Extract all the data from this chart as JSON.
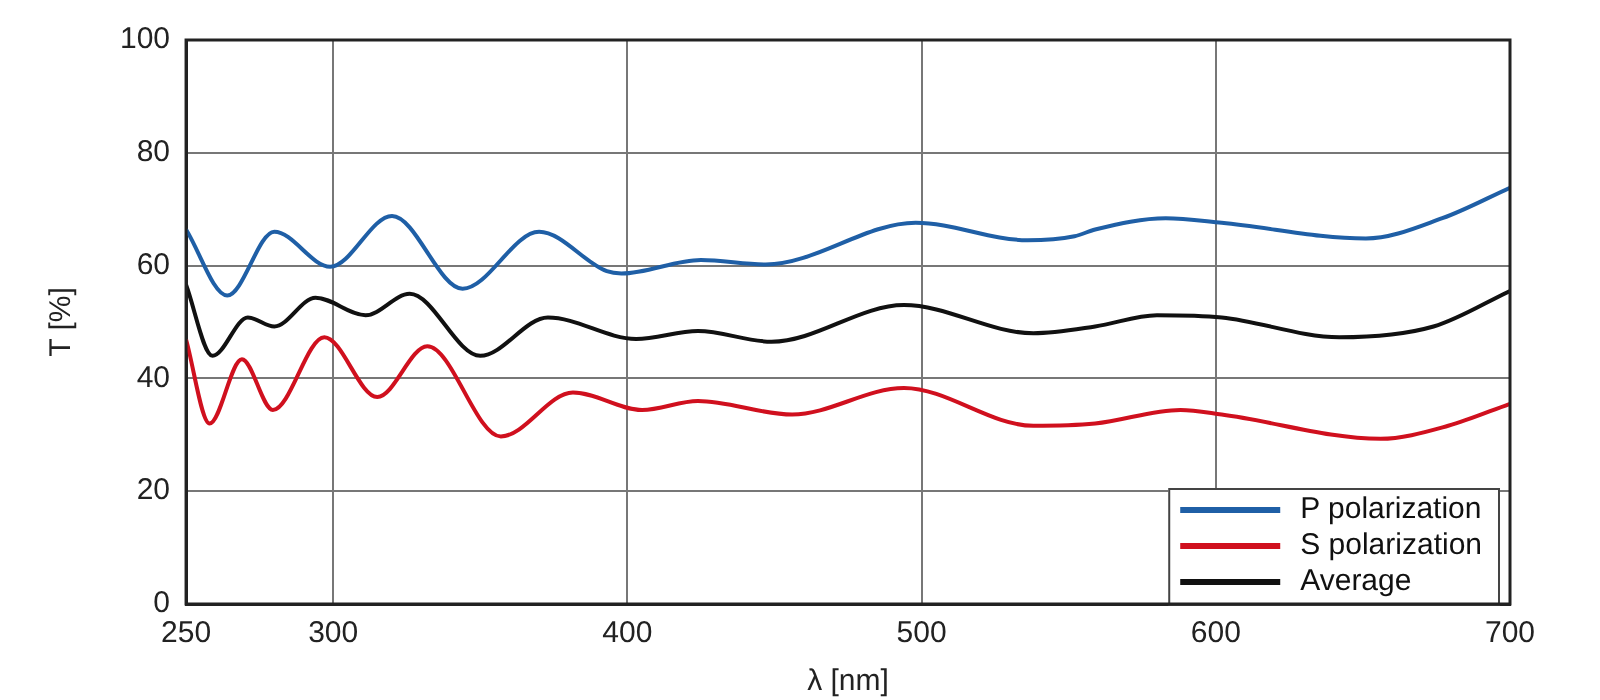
{
  "chart_data": {
    "type": "line",
    "xlabel": "λ [nm]",
    "ylabel": "T [%]",
    "xlim": [
      250,
      700
    ],
    "xticks": [
      250,
      300,
      400,
      500,
      600,
      700
    ],
    "ylim": [
      0,
      100
    ],
    "yticks": [
      0,
      20,
      40,
      60,
      80,
      100
    ],
    "grid": true,
    "legend": "bottom right",
    "marker": "none",
    "line_style": "solid",
    "series": [
      {
        "name": "P polarization",
        "color": "#1f5fa6",
        "x": [
          250,
          264,
          280,
          299,
          320,
          344,
          370,
          393,
          398,
          425,
          447,
          498,
          536,
          552,
          559,
          583,
          602,
          651,
          677,
          700
        ],
        "values": [
          66.4,
          54.7,
          66,
          59.8,
          68.8,
          55.9,
          66,
          59,
          58.6,
          61,
          60.2,
          67.6,
          64.5,
          65.2,
          66.4,
          68.4,
          67.6,
          64.8,
          68.4,
          73.8
        ]
      },
      {
        "name": "S polarization",
        "color": "#d0101e",
        "x": [
          250,
          258,
          269,
          279.5,
          297,
          315,
          332,
          357,
          381.5,
          405,
          424,
          456,
          494,
          538,
          559,
          588,
          602,
          656,
          679,
          700
        ],
        "values": [
          46.9,
          32,
          43.4,
          34.4,
          47.3,
          36.7,
          45.7,
          29.7,
          37.5,
          34.4,
          36,
          33.6,
          38.3,
          31.6,
          32,
          34.4,
          33.6,
          29.3,
          31.6,
          35.5
        ]
      },
      {
        "name": "Average",
        "color": "#111111",
        "x": [
          250,
          259,
          271,
          280,
          294,
          311,
          326,
          350,
          373,
          403,
          424,
          449,
          494,
          538,
          559,
          580,
          602,
          642,
          674,
          700
        ],
        "values": [
          56.6,
          44,
          50.8,
          49.2,
          54.3,
          51.2,
          55,
          44,
          50.8,
          47,
          48.4,
          46.5,
          53,
          48,
          49.2,
          51.2,
          50.8,
          47.3,
          49.2,
          55.5
        ]
      }
    ]
  }
}
